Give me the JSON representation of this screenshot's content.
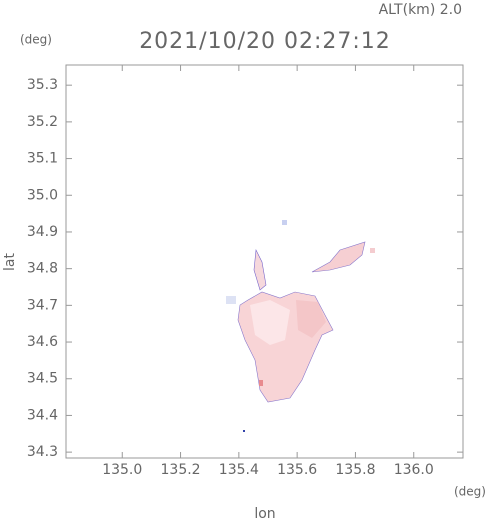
{
  "chart_data": {
    "type": "map",
    "subtitle": "ALT(km) 2.0",
    "title": "2021/10/20 02:27:12",
    "yunit": "(deg)",
    "xunit": "(deg)",
    "xlabel": "lon",
    "ylabel": "lat",
    "xlim": [
      134.807,
      136.169
    ],
    "ylim": [
      34.284,
      35.355
    ],
    "xticks": [
      {
        "value": 135.0,
        "label": "135.0"
      },
      {
        "value": 135.2,
        "label": "135.2"
      },
      {
        "value": 135.4,
        "label": "135.4"
      },
      {
        "value": 135.6,
        "label": "135.6"
      },
      {
        "value": 135.8,
        "label": "135.8"
      },
      {
        "value": 136.0,
        "label": "136.0"
      }
    ],
    "yticks": [
      {
        "value": 34.3,
        "label": "34.3"
      },
      {
        "value": 34.4,
        "label": "34.4"
      },
      {
        "value": 34.5,
        "label": "34.5"
      },
      {
        "value": 34.6,
        "label": "34.6"
      },
      {
        "value": 34.7,
        "label": "34.7"
      },
      {
        "value": 34.8,
        "label": "34.8"
      },
      {
        "value": 34.9,
        "label": "34.9"
      },
      {
        "value": 35.0,
        "label": "35.0"
      },
      {
        "value": 35.1,
        "label": "35.1"
      },
      {
        "value": 35.2,
        "label": "35.2"
      },
      {
        "value": 35.3,
        "label": "35.3"
      }
    ]
  }
}
